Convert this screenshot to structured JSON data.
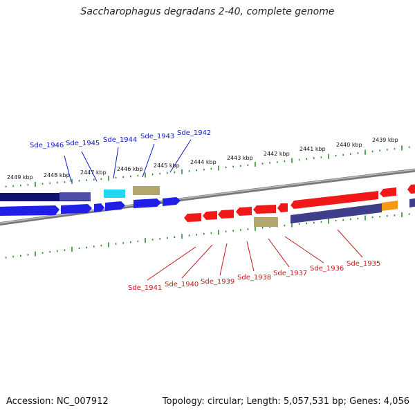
{
  "title": "Saccharophagus degradans 2-40, complete genome",
  "footer": {
    "accession": "Accession: NC_007912",
    "stats": "Topology: circular; Length: 5,057,531 bp; Genes: 4,056"
  },
  "colors": {
    "forward_gene": "#1f1fe8",
    "reverse_gene": "#f01818",
    "forward_label": "#0a18c8",
    "reverse_label": "#c41818",
    "tick": "#2a8a2a",
    "backbone": "#888888"
  },
  "kbp_labels": [
    "2449 kbp",
    "2448 kbp",
    "2447 kbp",
    "2446 kbp",
    "2445 kbp",
    "2444 kbp",
    "2443 kbp",
    "2442 kbp",
    "2441 kbp",
    "2440 kbp",
    "2439 kbp"
  ],
  "forward_genes": [
    "Sde_1946",
    "Sde_1945",
    "Sde_1944",
    "Sde_1943",
    "Sde_1942"
  ],
  "reverse_genes": [
    "Sde_1941",
    "Sde_1940",
    "Sde_1939",
    "Sde_1938",
    "Sde_1937",
    "Sde_1936",
    "Sde_1935"
  ]
}
